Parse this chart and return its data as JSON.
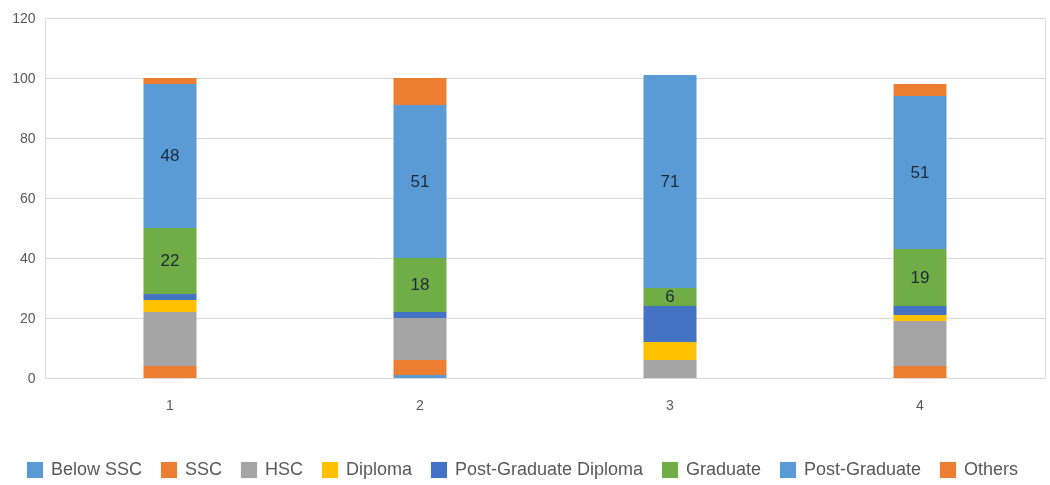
{
  "chart_data": {
    "type": "bar",
    "stacked": true,
    "categories": [
      "1",
      "2",
      "3",
      "4"
    ],
    "series": [
      {
        "name": "Below SSC",
        "color": "#5b9bd5",
        "values": [
          null,
          1,
          null,
          null
        ]
      },
      {
        "name": "SSC",
        "color": "#ed7d31",
        "values": [
          4,
          5,
          null,
          4
        ]
      },
      {
        "name": "HSC",
        "color": "#a5a5a5",
        "values": [
          18,
          14,
          6,
          15
        ]
      },
      {
        "name": "Diploma",
        "color": "#ffc000",
        "values": [
          4,
          null,
          6,
          2
        ]
      },
      {
        "name": "Post-Graduate Diploma",
        "color": "#4472c4",
        "values": [
          2,
          2,
          12,
          3
        ]
      },
      {
        "name": "Graduate",
        "color": "#70ad47",
        "values": [
          22,
          18,
          6,
          19
        ],
        "value_labels": [
          "22",
          "18",
          "6",
          "19"
        ]
      },
      {
        "name": "Post-Graduate",
        "color": "#5b9bd5",
        "values": [
          48,
          51,
          71,
          51
        ],
        "value_labels": [
          "48",
          "51",
          "71",
          "51"
        ]
      },
      {
        "name": "Others",
        "color": "#ed7d31",
        "values": [
          2,
          9,
          null,
          4
        ]
      }
    ],
    "ylim": [
      0,
      120
    ],
    "yticks": [
      0,
      20,
      40,
      60,
      80,
      100,
      120
    ],
    "grid": "y",
    "legend": "bottom"
  }
}
